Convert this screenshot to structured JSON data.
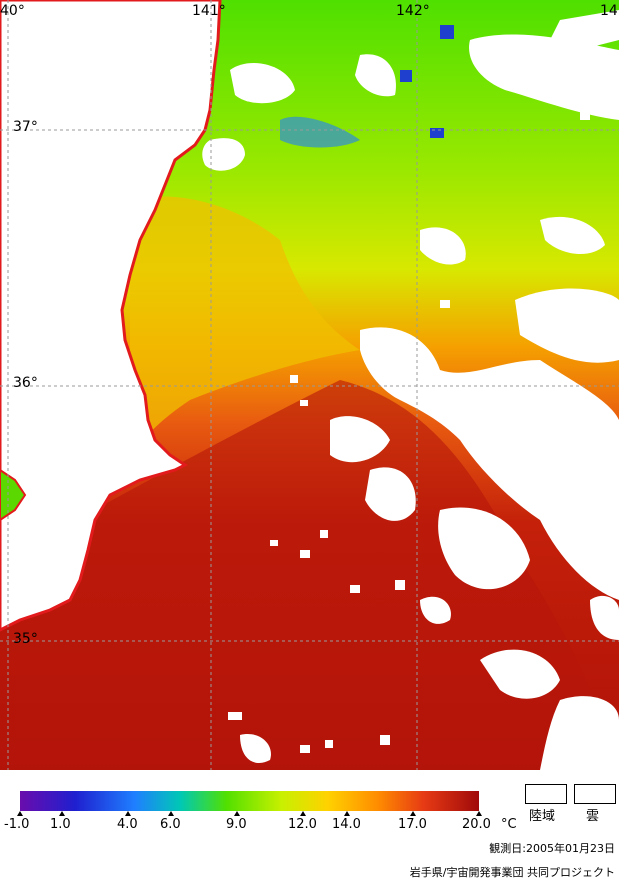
{
  "map": {
    "lon_labels": [
      {
        "key": "lon-140",
        "text": "40°"
      },
      {
        "key": "lon-141",
        "text": "141°"
      },
      {
        "key": "lon-142",
        "text": "142°"
      },
      {
        "key": "lon-143",
        "text": "14"
      }
    ],
    "lat_labels": [
      {
        "key": "lat-37",
        "text": "37°"
      },
      {
        "key": "lat-36",
        "text": "36°"
      },
      {
        "key": "lat-35",
        "text": "35°"
      }
    ],
    "colors": {
      "land_outline": "#e31a1c",
      "cloud": "#ffffff",
      "grid": "#9a9a9a"
    }
  },
  "legend": {
    "ticks": [
      "-1.0",
      "1.0",
      "4.0",
      "6.0",
      "9.0",
      "12.0",
      "14.0",
      "17.0",
      "20.0"
    ],
    "unit": "°C",
    "land_label": "陸域",
    "cloud_label": "雲",
    "color_stops": [
      "#6a0dad",
      "#1f1fcf",
      "#1f7fff",
      "#00c8b4",
      "#52e000",
      "#c8f000",
      "#ffd200",
      "#ff8c00",
      "#e63a14",
      "#a00a0a"
    ]
  },
  "footer": {
    "observation_date": "観測日:2005年01月23日",
    "credit": "岩手県/宇宙開発事業団 共同プロジェクト"
  }
}
